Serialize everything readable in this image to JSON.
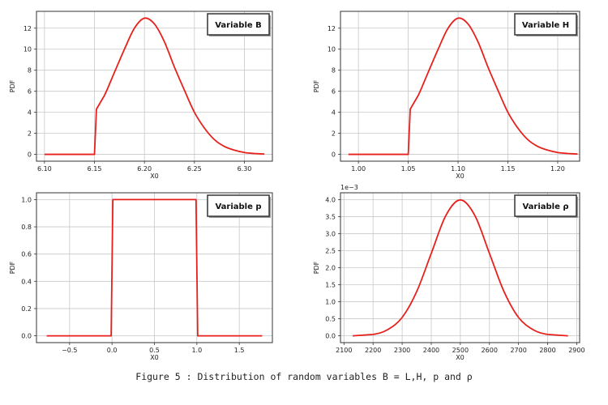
{
  "caption": "Figure 5 : Distribution of random variables B = L,H, p and ρ",
  "line_color": "#e8201c",
  "chart_data": [
    {
      "type": "line",
      "legend": "Variable B",
      "xlabel": "X0",
      "ylabel": "PDF",
      "xlim": [
        6.092,
        6.328
      ],
      "ylim": [
        -0.65,
        13.6
      ],
      "xticks": [
        6.1,
        6.15,
        6.2,
        6.25,
        6.3
      ],
      "xtick_labels": [
        "6.10",
        "6.15",
        "6.20",
        "6.25",
        "6.30"
      ],
      "yticks": [
        0,
        2,
        4,
        6,
        8,
        10,
        12
      ],
      "ytick_labels": [
        "0",
        "2",
        "4",
        "6",
        "8",
        "10",
        "12"
      ],
      "grid": true,
      "legend_position": "top-right",
      "x": [
        6.1,
        6.15,
        6.152,
        6.16,
        6.17,
        6.18,
        6.19,
        6.2,
        6.21,
        6.22,
        6.23,
        6.24,
        6.25,
        6.26,
        6.27,
        6.28,
        6.29,
        6.3,
        6.31,
        6.32
      ],
      "y": [
        0,
        0,
        4.3,
        5.6,
        7.8,
        10.0,
        12.0,
        12.95,
        12.4,
        10.7,
        8.3,
        6.1,
        4.0,
        2.5,
        1.4,
        0.75,
        0.4,
        0.18,
        0.08,
        0.03
      ]
    },
    {
      "type": "line",
      "legend": "Variable H",
      "xlabel": "X0",
      "ylabel": "PDF",
      "xlim": [
        0.982,
        1.222
      ],
      "ylim": [
        -0.65,
        13.6
      ],
      "xticks": [
        1.0,
        1.05,
        1.1,
        1.15,
        1.2
      ],
      "xtick_labels": [
        "1.00",
        "1.05",
        "1.10",
        "1.15",
        "1.20"
      ],
      "yticks": [
        0,
        2,
        4,
        6,
        8,
        10,
        12
      ],
      "ytick_labels": [
        "0",
        "2",
        "4",
        "6",
        "8",
        "10",
        "12"
      ],
      "grid": true,
      "legend_position": "top-right",
      "x": [
        0.99,
        1.05,
        1.052,
        1.06,
        1.07,
        1.08,
        1.09,
        1.1,
        1.11,
        1.12,
        1.13,
        1.14,
        1.15,
        1.16,
        1.17,
        1.18,
        1.19,
        1.2,
        1.21,
        1.22
      ],
      "y": [
        0,
        0,
        4.3,
        5.6,
        7.8,
        10.0,
        12.0,
        12.95,
        12.4,
        10.7,
        8.3,
        6.1,
        4.0,
        2.5,
        1.4,
        0.75,
        0.4,
        0.18,
        0.08,
        0.03
      ]
    },
    {
      "type": "line",
      "legend": "Variable p",
      "xlabel": "X0",
      "ylabel": "PDF",
      "xlim": [
        -0.89,
        1.89
      ],
      "ylim": [
        -0.05,
        1.05
      ],
      "xticks": [
        -0.5,
        0.0,
        0.5,
        1.0,
        1.5
      ],
      "xtick_labels": [
        "−0.5",
        "0.0",
        "0.5",
        "1.0",
        "1.5"
      ],
      "yticks": [
        0.0,
        0.2,
        0.4,
        0.6,
        0.8,
        1.0
      ],
      "ytick_labels": [
        "0.0",
        "0.2",
        "0.4",
        "0.6",
        "0.8",
        "1.0"
      ],
      "grid": true,
      "legend_position": "top-right",
      "x": [
        -0.77,
        -0.01,
        0.01,
        0.99,
        1.01,
        1.77
      ],
      "y": [
        0,
        0,
        1,
        1,
        0,
        0
      ]
    },
    {
      "type": "line",
      "legend": "Variable ρ",
      "xlabel": "X0",
      "ylabel": "PDF",
      "y_offset_label": "1e−3",
      "xlim": [
        2088,
        2910
      ],
      "ylim": [
        -0.2,
        4.2
      ],
      "xticks": [
        2100,
        2200,
        2300,
        2400,
        2500,
        2600,
        2700,
        2800,
        2900
      ],
      "xtick_labels": [
        "2100",
        "2200",
        "2300",
        "2400",
        "2500",
        "2600",
        "2700",
        "2800",
        "2900"
      ],
      "yticks": [
        0.0,
        0.5,
        1.0,
        1.5,
        2.0,
        2.5,
        3.0,
        3.5,
        4.0
      ],
      "ytick_labels": [
        "0.0",
        "0.5",
        "1.0",
        "1.5",
        "2.0",
        "2.5",
        "3.0",
        "3.5",
        "4.0"
      ],
      "grid": true,
      "legend_position": "top-right",
      "x": [
        2130,
        2200,
        2250,
        2300,
        2350,
        2400,
        2450,
        2500,
        2550,
        2600,
        2650,
        2700,
        2750,
        2800,
        2870
      ],
      "y": [
        0.0,
        0.04,
        0.18,
        0.54,
        1.3,
        2.42,
        3.53,
        3.99,
        3.53,
        2.42,
        1.3,
        0.54,
        0.18,
        0.04,
        0.0
      ]
    }
  ]
}
